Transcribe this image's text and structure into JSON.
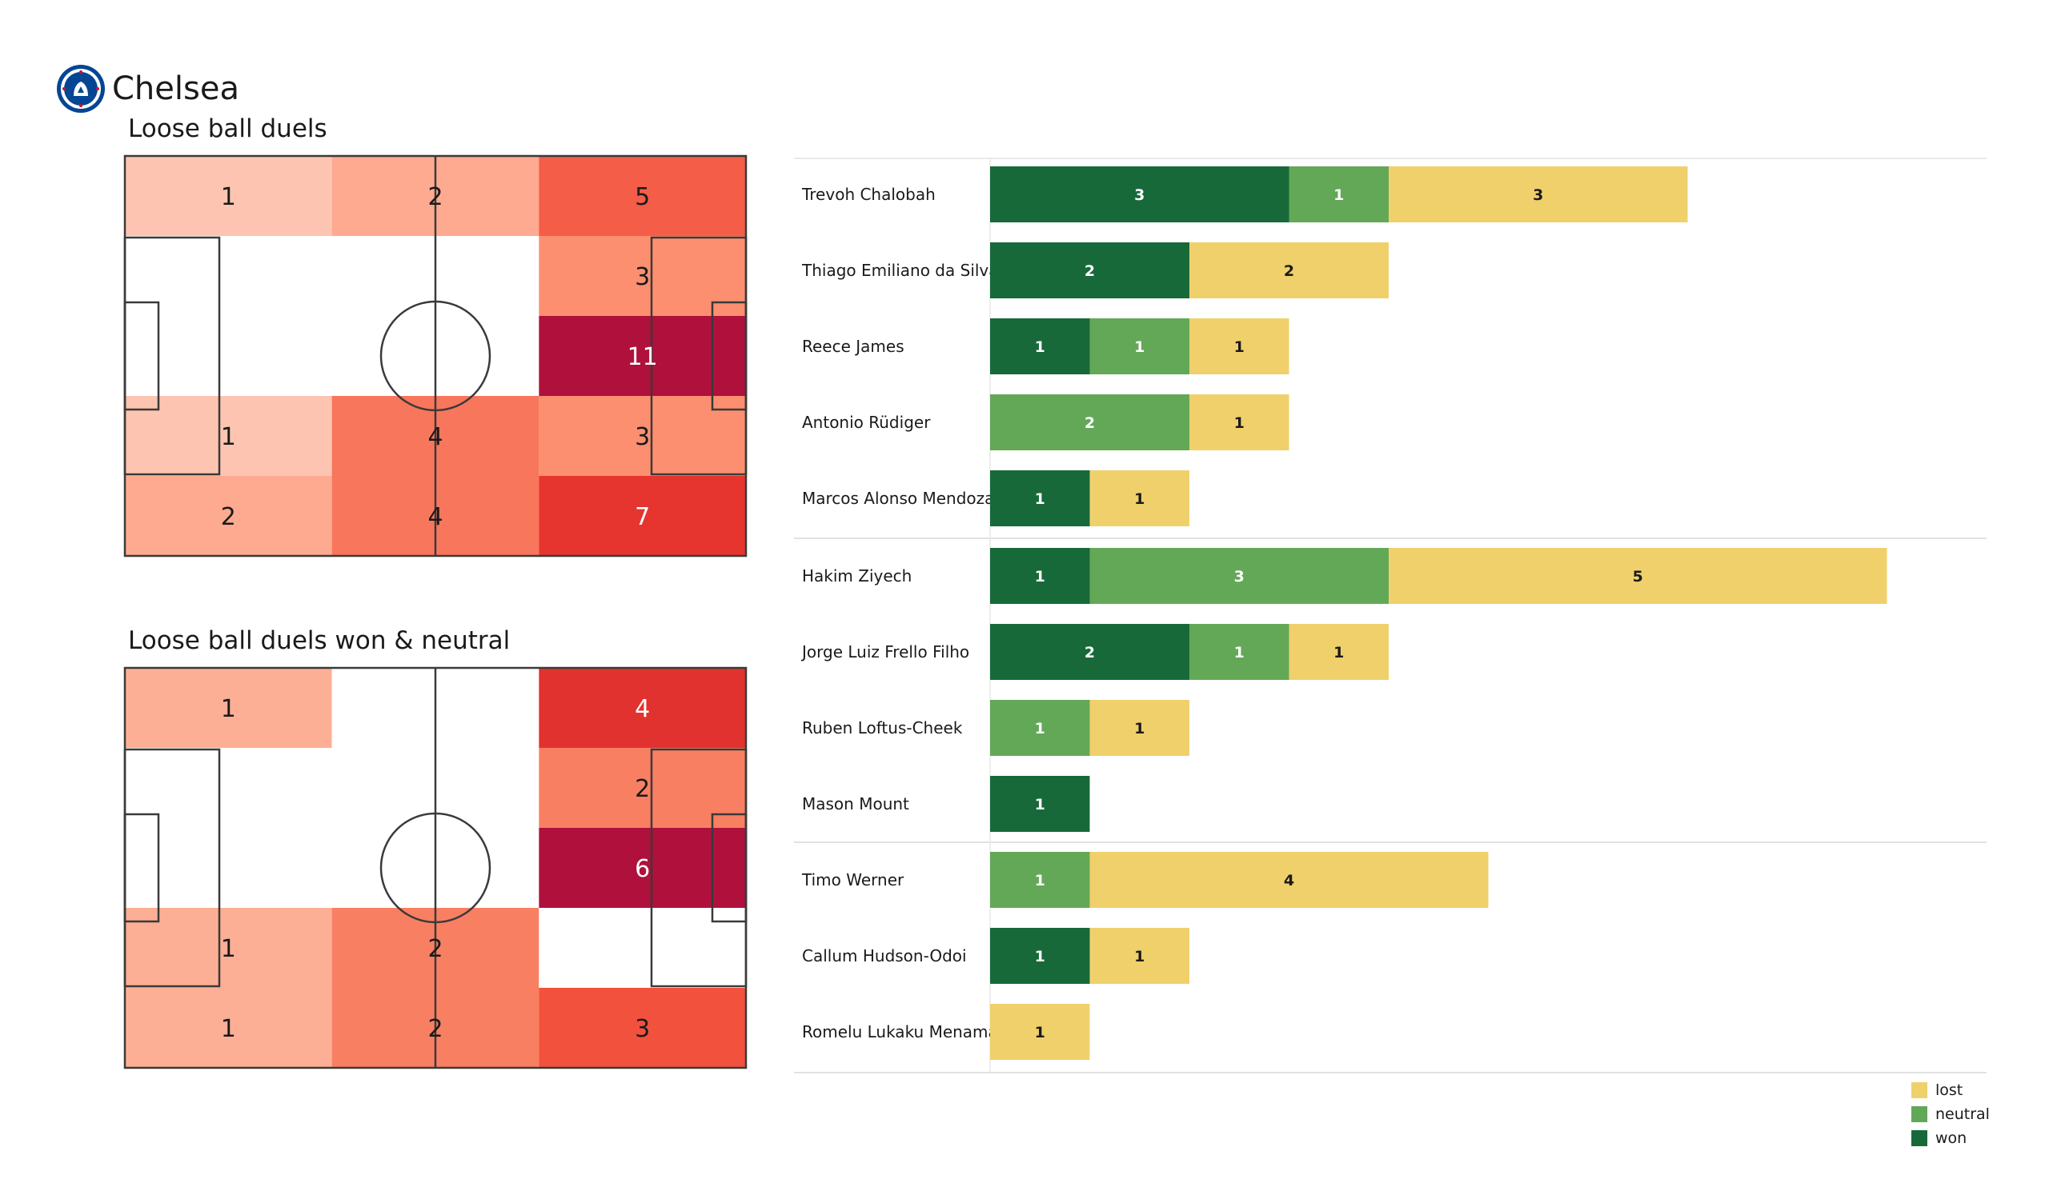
{
  "team": {
    "name": "Chelsea",
    "logo_icon": "chelsea-crest-icon"
  },
  "colors": {
    "won": "#17693a",
    "neutral": "#63a857",
    "lost": "#f0d06b"
  },
  "chart_data": [
    {
      "type": "heatmap",
      "title": "Loose ball duels",
      "grid": [
        [
          1,
          2,
          5
        ],
        [
          0,
          0,
          3
        ],
        [
          0,
          0,
          11
        ],
        [
          1,
          4,
          3
        ],
        [
          2,
          4,
          7
        ]
      ]
    },
    {
      "type": "heatmap",
      "title": "Loose ball duels won & neutral",
      "grid": [
        [
          1,
          0,
          4
        ],
        [
          0,
          0,
          2
        ],
        [
          0,
          0,
          6
        ],
        [
          1,
          2,
          0
        ],
        [
          1,
          2,
          3
        ]
      ]
    },
    {
      "type": "bar",
      "orientation": "horizontal",
      "stacked": true,
      "legend": [
        "lost",
        "neutral",
        "won"
      ],
      "legend_position": "bottom-right",
      "groups": [
        [
          {
            "name": "Trevoh Chalobah",
            "won": 3,
            "neutral": 1,
            "lost": 3
          },
          {
            "name": "Thiago Emiliano da Silva",
            "won": 2,
            "neutral": 0,
            "lost": 2
          },
          {
            "name": "Reece James",
            "won": 1,
            "neutral": 1,
            "lost": 1
          },
          {
            "name": "Antonio Rüdiger",
            "won": 0,
            "neutral": 2,
            "lost": 1
          },
          {
            "name": "Marcos  Alonso Mendoza",
            "won": 1,
            "neutral": 0,
            "lost": 1
          }
        ],
        [
          {
            "name": "Hakim Ziyech",
            "won": 1,
            "neutral": 3,
            "lost": 5
          },
          {
            "name": "Jorge Luiz Frello Filho",
            "won": 2,
            "neutral": 1,
            "lost": 1
          },
          {
            "name": "Ruben Loftus-Cheek",
            "won": 0,
            "neutral": 1,
            "lost": 1
          },
          {
            "name": "Mason Mount",
            "won": 1,
            "neutral": 0,
            "lost": 0
          }
        ],
        [
          {
            "name": "Timo Werner",
            "won": 0,
            "neutral": 1,
            "lost": 4
          },
          {
            "name": "Callum Hudson-Odoi",
            "won": 1,
            "neutral": 0,
            "lost": 1
          },
          {
            "name": "Romelu Lukaku Menama",
            "won": 0,
            "neutral": 0,
            "lost": 1
          }
        ]
      ]
    }
  ]
}
